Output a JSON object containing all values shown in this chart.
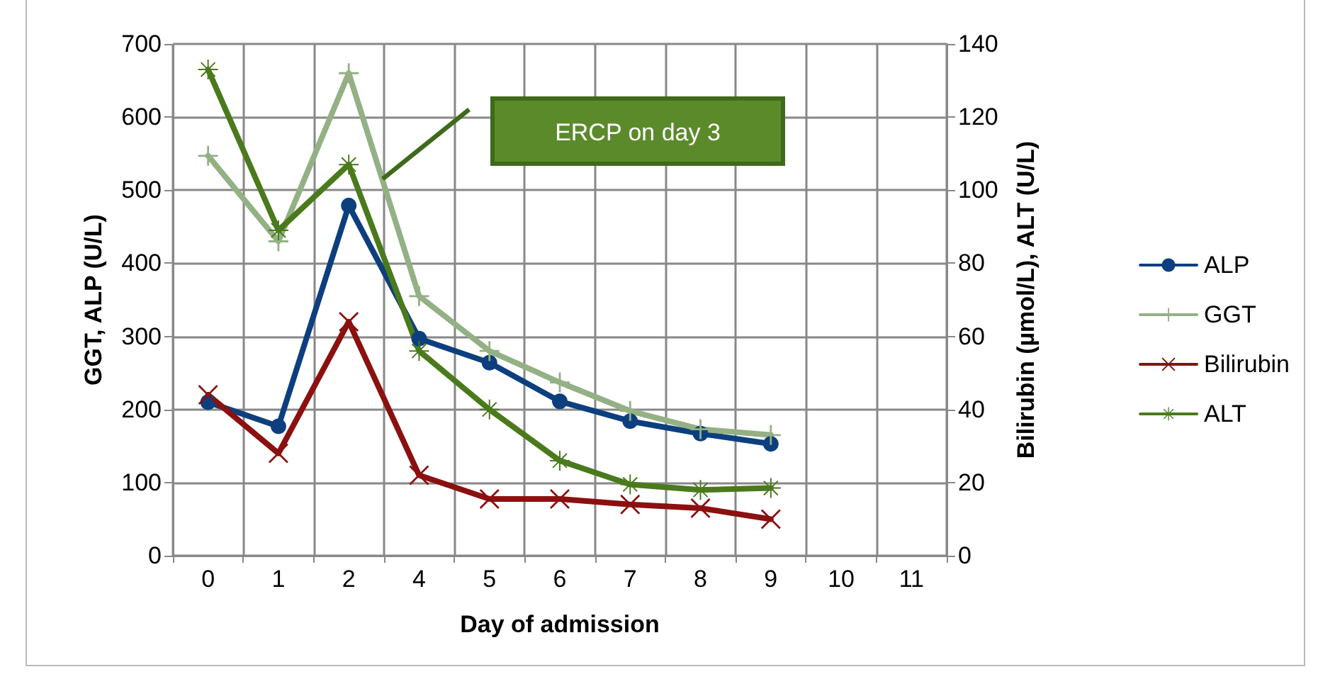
{
  "chart_data": {
    "type": "line",
    "xlabel": "Day of admission",
    "ylabel": "GGT, ALP (U/L)",
    "y2label": "Bilirubin (µmol/L), ALT (U/L)",
    "categories": [
      "0",
      "1",
      "2",
      "4",
      "5",
      "6",
      "7",
      "8",
      "9",
      "10",
      "11"
    ],
    "series": [
      {
        "name": "ALP",
        "color": "#0d3f7f",
        "marker": "circle",
        "values": [
          210,
          177,
          479,
          297,
          264,
          211,
          184,
          167,
          153,
          null,
          null
        ]
      },
      {
        "name": "GGT",
        "color": "#93b184",
        "marker": "plus",
        "values": [
          547,
          430,
          660,
          355,
          280,
          237,
          198,
          173,
          165,
          null,
          null
        ]
      },
      {
        "name": "Bilirubin",
        "color": "#8b1010",
        "marker": "cross",
        "axis": "y2",
        "values": [
          44,
          28,
          64,
          22,
          15.5,
          15.5,
          14,
          13,
          10,
          null,
          null
        ]
      },
      {
        "name": "ALT",
        "color": "#4a7a1c",
        "marker": "star",
        "axis": "y2",
        "values": [
          133,
          89,
          107,
          56,
          40,
          26,
          19.5,
          18,
          18.5,
          null,
          null
        ]
      }
    ],
    "ylim": [
      0,
      700
    ],
    "yticks": [
      0,
      100,
      200,
      300,
      400,
      500,
      600,
      700
    ],
    "y2lim": [
      0,
      140
    ],
    "y2ticks": [
      0,
      20,
      40,
      60,
      80,
      100,
      120,
      140
    ],
    "annotations": [
      "ERCP on day 3"
    ],
    "grid": true,
    "legend": "right",
    "line_style": "solid"
  }
}
